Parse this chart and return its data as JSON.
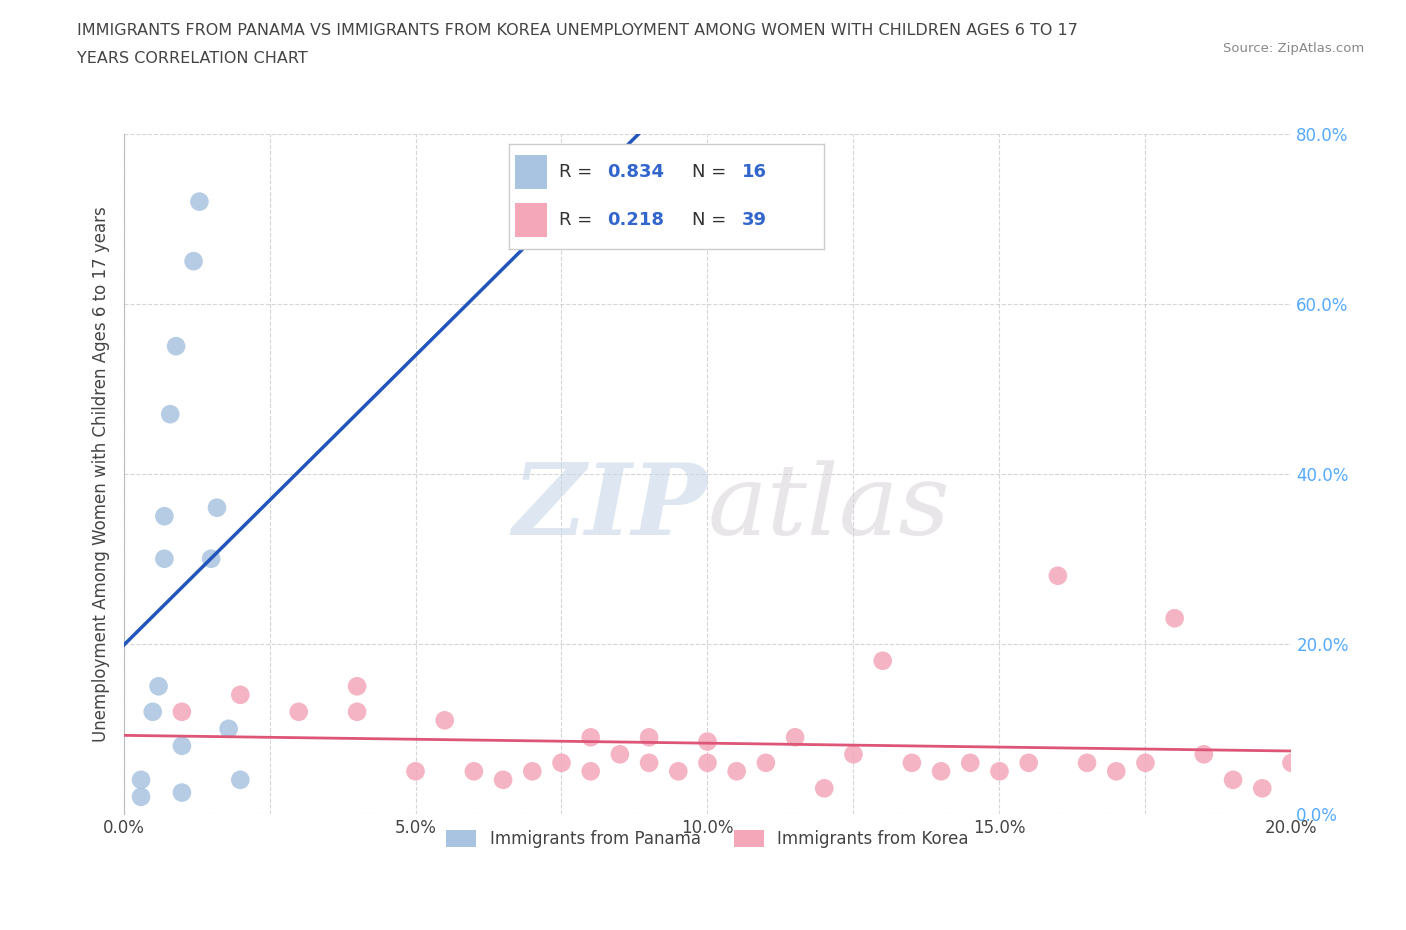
{
  "title_line1": "IMMIGRANTS FROM PANAMA VS IMMIGRANTS FROM KOREA UNEMPLOYMENT AMONG WOMEN WITH CHILDREN AGES 6 TO 17",
  "title_line2": "YEARS CORRELATION CHART",
  "source": "Source: ZipAtlas.com",
  "ylabel": "Unemployment Among Women with Children Ages 6 to 17 years",
  "xlim": [
    0.0,
    0.2
  ],
  "ylim": [
    0.0,
    0.8
  ],
  "xticks": [
    0.0,
    0.025,
    0.05,
    0.075,
    0.1,
    0.125,
    0.15,
    0.175,
    0.2
  ],
  "xtick_labels": [
    "0.0%",
    "",
    "5.0%",
    "",
    "10.0%",
    "",
    "15.0%",
    "",
    "20.0%"
  ],
  "yticks": [
    0.0,
    0.2,
    0.4,
    0.6,
    0.8
  ],
  "panama_color": "#a8c4e0",
  "korea_color": "#f4a7b9",
  "panama_line_color": "#2255bb",
  "korea_line_color": "#dd5577",
  "panama_R": 0.834,
  "panama_N": 16,
  "korea_R": 0.218,
  "korea_N": 39,
  "panama_x": [
    0.003,
    0.003,
    0.005,
    0.006,
    0.007,
    0.007,
    0.008,
    0.009,
    0.01,
    0.01,
    0.012,
    0.013,
    0.015,
    0.016,
    0.018,
    0.02
  ],
  "panama_y": [
    0.02,
    0.04,
    0.12,
    0.15,
    0.3,
    0.35,
    0.47,
    0.55,
    0.025,
    0.08,
    0.65,
    0.72,
    0.3,
    0.36,
    0.1,
    0.04
  ],
  "korea_x": [
    0.01,
    0.02,
    0.03,
    0.04,
    0.04,
    0.05,
    0.055,
    0.06,
    0.065,
    0.07,
    0.075,
    0.08,
    0.08,
    0.085,
    0.09,
    0.09,
    0.095,
    0.1,
    0.1,
    0.105,
    0.11,
    0.115,
    0.12,
    0.125,
    0.13,
    0.135,
    0.14,
    0.145,
    0.15,
    0.155,
    0.16,
    0.165,
    0.17,
    0.175,
    0.18,
    0.185,
    0.19,
    0.195,
    0.2
  ],
  "korea_y": [
    0.12,
    0.14,
    0.12,
    0.12,
    0.15,
    0.05,
    0.11,
    0.05,
    0.04,
    0.05,
    0.06,
    0.05,
    0.09,
    0.07,
    0.06,
    0.09,
    0.05,
    0.06,
    0.085,
    0.05,
    0.06,
    0.09,
    0.03,
    0.07,
    0.18,
    0.06,
    0.05,
    0.06,
    0.05,
    0.06,
    0.28,
    0.06,
    0.05,
    0.06,
    0.23,
    0.07,
    0.04,
    0.03,
    0.06
  ],
  "watermark_zip": "ZIP",
  "watermark_atlas": "atlas",
  "background_color": "#ffffff",
  "grid_color": "#cccccc",
  "right_tick_color": "#55aaff",
  "legend_label_color": "#3366cc",
  "text_color": "#444444",
  "source_color": "#888888"
}
